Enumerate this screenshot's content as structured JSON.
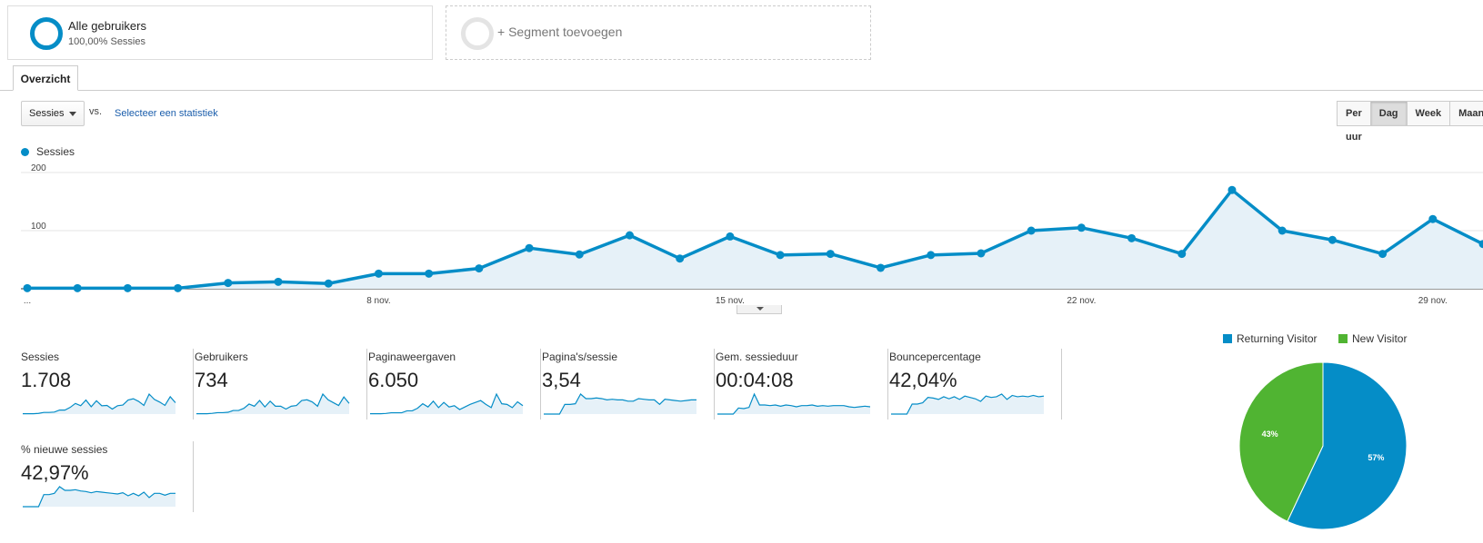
{
  "segments": [
    {
      "title": "Alle gebruikers",
      "subtitle": "100,00% Sessies"
    },
    {
      "title": "+ Segment toevoegen"
    }
  ],
  "tabs": [
    {
      "label": "Overzicht",
      "active": true
    }
  ],
  "metric_select": {
    "value": "Sessies"
  },
  "vs_label": "vs.",
  "compare_link": "Selecteer een statistiek",
  "granularity": [
    {
      "label": "Per uur",
      "active": false
    },
    {
      "label": "Dag",
      "active": true
    },
    {
      "label": "Week",
      "active": false
    },
    {
      "label": "Maand",
      "active": false
    }
  ],
  "chart_data": {
    "type": "area",
    "series": [
      {
        "name": "Sessies",
        "color": "#058dc7"
      }
    ],
    "ylim": [
      0,
      200
    ],
    "yticks": [
      "200",
      "100"
    ],
    "xticks": [
      {
        "index": 0,
        "label": "..."
      },
      {
        "index": 7,
        "label": "8 nov."
      },
      {
        "index": 14,
        "label": "15 nov."
      },
      {
        "index": 21,
        "label": "22 nov."
      },
      {
        "index": 28,
        "label": "29 nov."
      }
    ],
    "values": [
      1,
      1,
      1,
      1,
      10,
      12,
      9,
      26,
      26,
      35,
      70,
      59,
      92,
      52,
      90,
      58,
      60,
      36,
      58,
      61,
      100,
      105,
      87,
      60,
      170,
      100,
      84,
      60,
      120,
      77
    ],
    "grid": true
  },
  "metrics": [
    {
      "label": "Sessies",
      "value": "1.708",
      "spark": [
        1,
        1,
        1,
        2,
        5,
        5,
        6,
        12,
        12,
        20,
        32,
        25,
        42,
        22,
        40,
        25,
        26,
        15,
        25,
        27,
        42,
        46,
        38,
        26,
        60,
        44,
        36,
        26,
        52,
        34
      ]
    },
    {
      "label": "Gebruikers",
      "value": "734",
      "spark": [
        1,
        1,
        1,
        2,
        4,
        4,
        5,
        10,
        10,
        16,
        28,
        22,
        38,
        20,
        36,
        22,
        22,
        14,
        22,
        24,
        38,
        40,
        34,
        22,
        56,
        40,
        32,
        24,
        48,
        30
      ]
    },
    {
      "label": "Paginaweergaven",
      "value": "6.050",
      "spark": [
        1,
        1,
        1,
        2,
        4,
        4,
        4,
        10,
        10,
        18,
        32,
        22,
        40,
        20,
        36,
        22,
        26,
        14,
        22,
        30,
        36,
        42,
        30,
        20,
        62,
        32,
        30,
        20,
        38,
        26
      ]
    },
    {
      "label": "Pagina's/sessie",
      "value": "3,54",
      "spark": [
        0,
        0,
        0,
        0,
        30,
        30,
        32,
        62,
        48,
        48,
        50,
        48,
        44,
        46,
        44,
        44,
        40,
        40,
        48,
        46,
        44,
        44,
        30,
        46,
        44,
        42,
        40,
        42,
        44,
        44
      ]
    },
    {
      "label": "Gem. sessieduur",
      "value": "00:04:08",
      "spark": [
        0,
        0,
        0,
        0,
        20,
        18,
        22,
        66,
        30,
        30,
        28,
        30,
        26,
        30,
        28,
        24,
        28,
        28,
        30,
        26,
        28,
        26,
        28,
        28,
        28,
        24,
        22,
        24,
        26,
        24
      ]
    },
    {
      "label": "Bouncepercentage",
      "value": "42,04%",
      "spark": [
        0,
        0,
        0,
        0,
        30,
        30,
        34,
        50,
        48,
        44,
        52,
        46,
        52,
        44,
        54,
        50,
        46,
        38,
        54,
        50,
        52,
        60,
        44,
        56,
        52,
        54,
        52,
        56,
        52,
        54
      ]
    },
    {
      "label": "% nieuwe sessies",
      "value": "42,97%",
      "spark": [
        0,
        0,
        0,
        0,
        40,
        40,
        44,
        66,
        54,
        54,
        56,
        52,
        50,
        46,
        50,
        48,
        46,
        44,
        42,
        46,
        36,
        44,
        36,
        48,
        30,
        44,
        44,
        38,
        44,
        44
      ]
    }
  ],
  "pie": {
    "legend": [
      {
        "label": "Returning Visitor",
        "color": "#058dc7",
        "percent": 57
      },
      {
        "label": "New Visitor",
        "color": "#50b432",
        "percent": 43
      }
    ],
    "labels": [
      "57%",
      "43%"
    ]
  }
}
